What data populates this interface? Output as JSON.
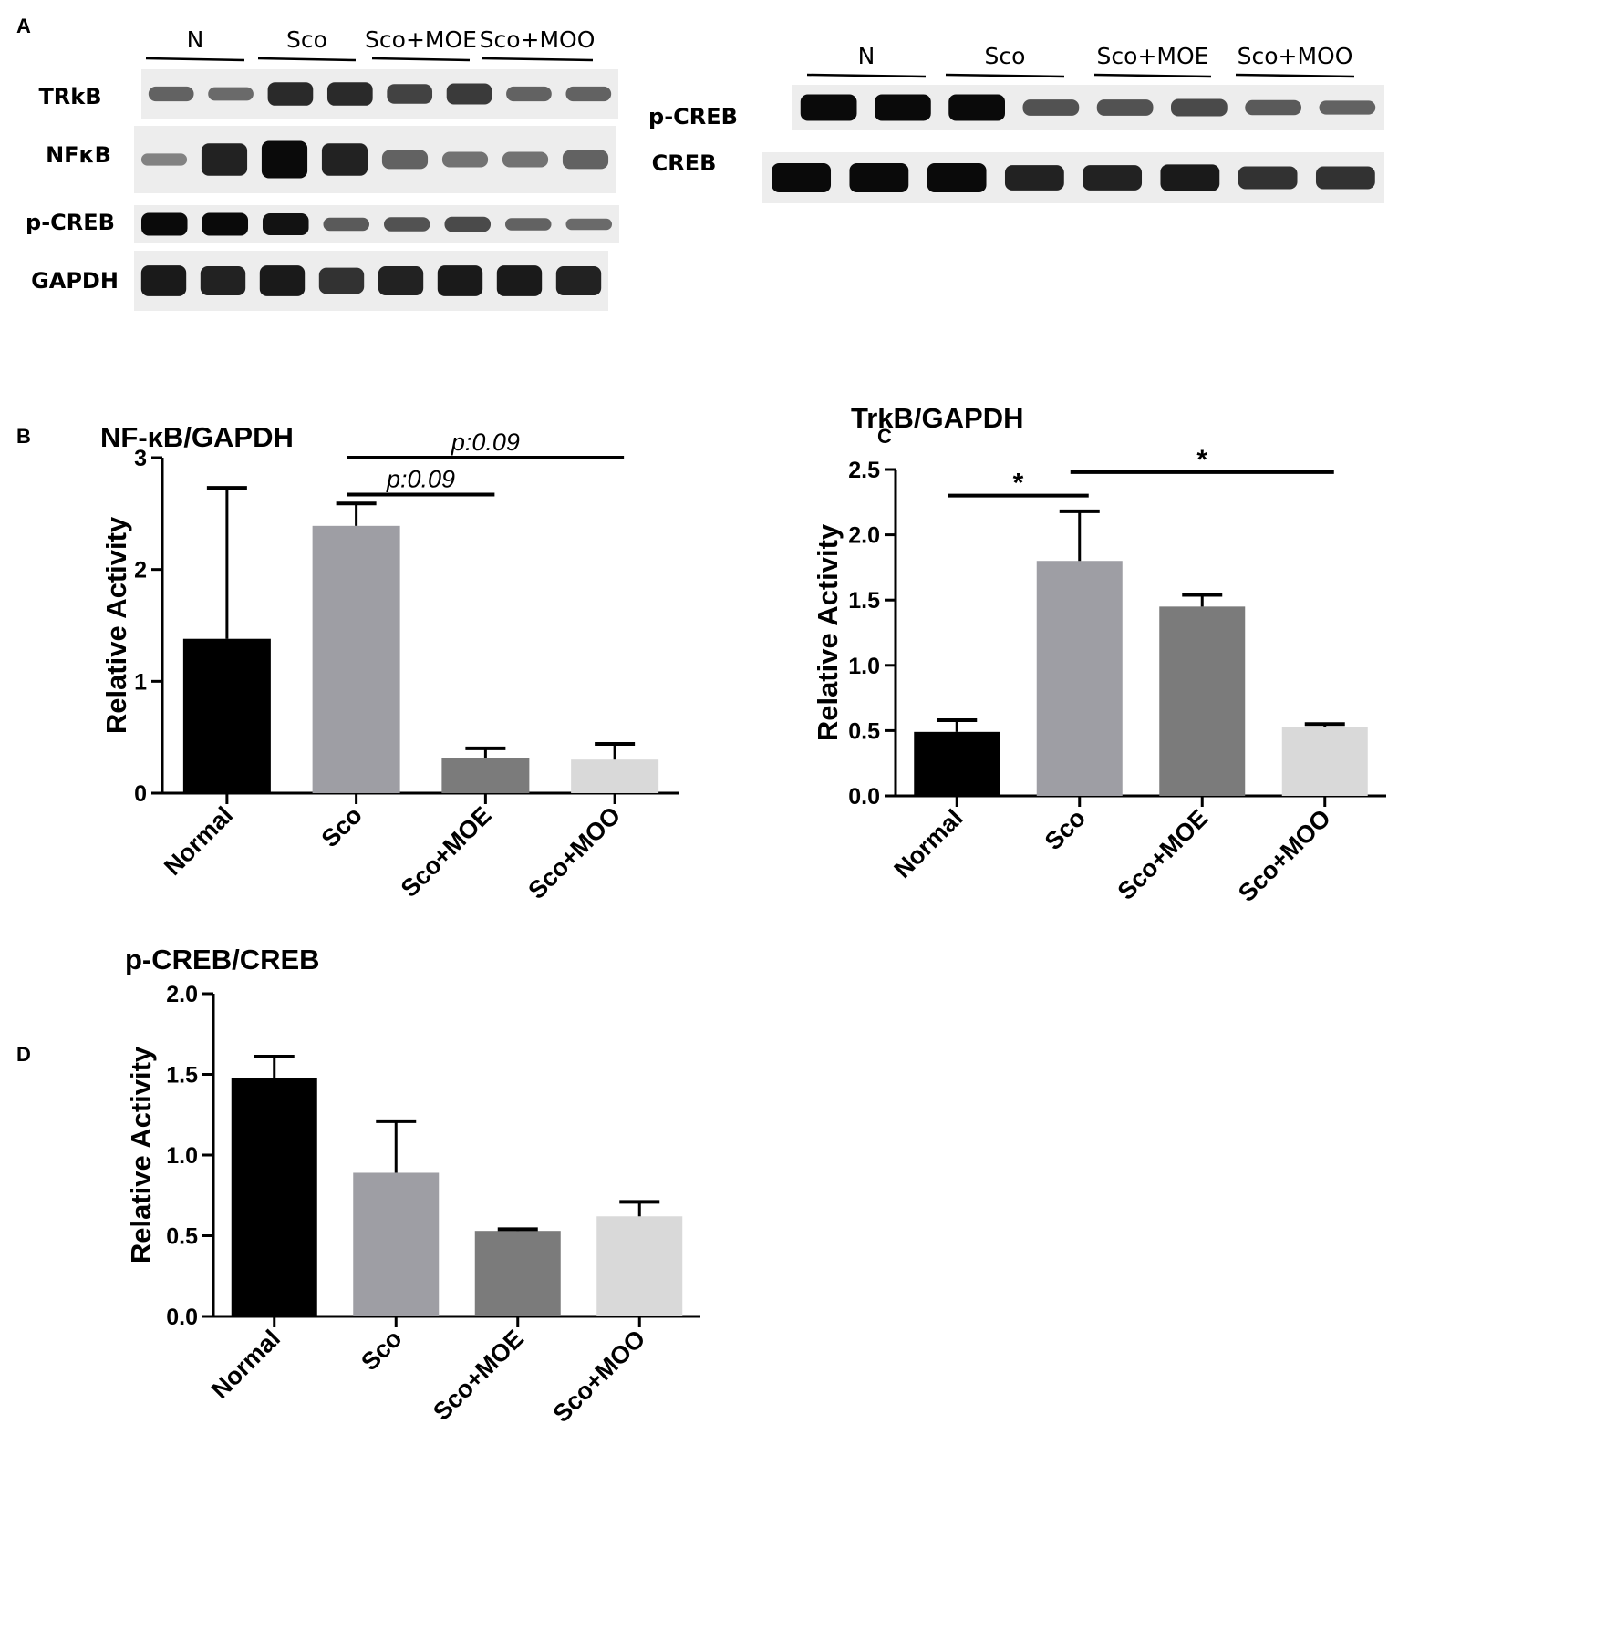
{
  "panels": {
    "A": "A",
    "B": "B",
    "C": "C",
    "D": "D"
  },
  "blot_left": {
    "groups": [
      "N",
      "Sco",
      "Sco+MOE",
      "Sco+MOO"
    ],
    "rows": [
      {
        "label": "TRkB",
        "intensity": [
          0.45,
          0.4,
          0.8,
          0.8,
          0.65,
          0.7,
          0.45,
          0.45
        ]
      },
      {
        "label": "NFκB",
        "intensity": [
          0.25,
          0.85,
          1.0,
          0.85,
          0.45,
          0.35,
          0.35,
          0.45
        ]
      },
      {
        "label": "p-CREB",
        "intensity": [
          1.0,
          1.0,
          0.95,
          0.5,
          0.55,
          0.6,
          0.45,
          0.4
        ]
      },
      {
        "label": "GAPDH",
        "intensity": [
          0.9,
          0.85,
          0.9,
          0.75,
          0.85,
          0.9,
          0.9,
          0.85
        ]
      }
    ]
  },
  "blot_right": {
    "groups": [
      "N",
      "Sco",
      "Sco+MOE",
      "Sco+MOO"
    ],
    "rows": [
      {
        "label": "p-CREB",
        "intensity": [
          1.0,
          1.0,
          1.0,
          0.55,
          0.55,
          0.6,
          0.5,
          0.45
        ]
      },
      {
        "label": "CREB",
        "intensity": [
          1.0,
          1.0,
          1.0,
          0.85,
          0.85,
          0.9,
          0.75,
          0.75
        ]
      }
    ]
  },
  "chart_data": [
    {
      "panel": "B",
      "type": "bar",
      "title": "NF-κB/GAPDH",
      "xlabel": "",
      "ylabel": "Relative Activity",
      "categories": [
        "Normal",
        "Sco",
        "Sco+MOE",
        "Sco+MOO"
      ],
      "values": [
        1.38,
        2.39,
        0.31,
        0.3
      ],
      "errors": [
        1.35,
        0.2,
        0.09,
        0.14
      ],
      "ylim": [
        0,
        3
      ],
      "yticks": [
        0,
        1,
        2,
        3
      ],
      "colors": [
        "#000000",
        "#9e9ea4",
        "#7b7b7b",
        "#d9d9d9"
      ],
      "annotations": [
        {
          "from": "Sco",
          "to": "Sco+MOE",
          "y": 2.67,
          "text": "p:0.09"
        },
        {
          "from": "Sco",
          "to": "Sco+MOO",
          "y": 3.0,
          "text": "p:0.09"
        }
      ]
    },
    {
      "panel": "C",
      "type": "bar",
      "title": "TrkB/GAPDH",
      "xlabel": "",
      "ylabel": "Relative Activity",
      "categories": [
        "Normal",
        "Sco",
        "Sco+MOE",
        "Sco+MOO"
      ],
      "values": [
        0.49,
        1.8,
        1.45,
        0.53
      ],
      "errors": [
        0.09,
        0.38,
        0.09,
        0.02
      ],
      "ylim": [
        0,
        2.5
      ],
      "yticks": [
        "0.0",
        "0.5",
        "1.0",
        "1.5",
        "2.0",
        "2.5"
      ],
      "colors": [
        "#000000",
        "#9e9ea4",
        "#7b7b7b",
        "#d9d9d9"
      ],
      "annotations": [
        {
          "from": "Normal",
          "to": "Sco",
          "y": 2.3,
          "text": "*"
        },
        {
          "from": "Sco",
          "to": "Sco+MOO",
          "y": 2.48,
          "text": "*"
        }
      ]
    },
    {
      "panel": "D",
      "type": "bar",
      "title": "p-CREB/CREB",
      "xlabel": "",
      "ylabel": "Relative Activity",
      "categories": [
        "Normal",
        "Sco",
        "Sco+MOE",
        "Sco+MOO"
      ],
      "values": [
        1.48,
        0.89,
        0.53,
        0.62
      ],
      "errors": [
        0.13,
        0.32,
        0.01,
        0.09
      ],
      "ylim": [
        0,
        2.0
      ],
      "yticks": [
        "0.0",
        "0.5",
        "1.0",
        "1.5",
        "2.0"
      ],
      "colors": [
        "#000000",
        "#9e9ea4",
        "#7b7b7b",
        "#d9d9d9"
      ],
      "annotations": []
    }
  ]
}
